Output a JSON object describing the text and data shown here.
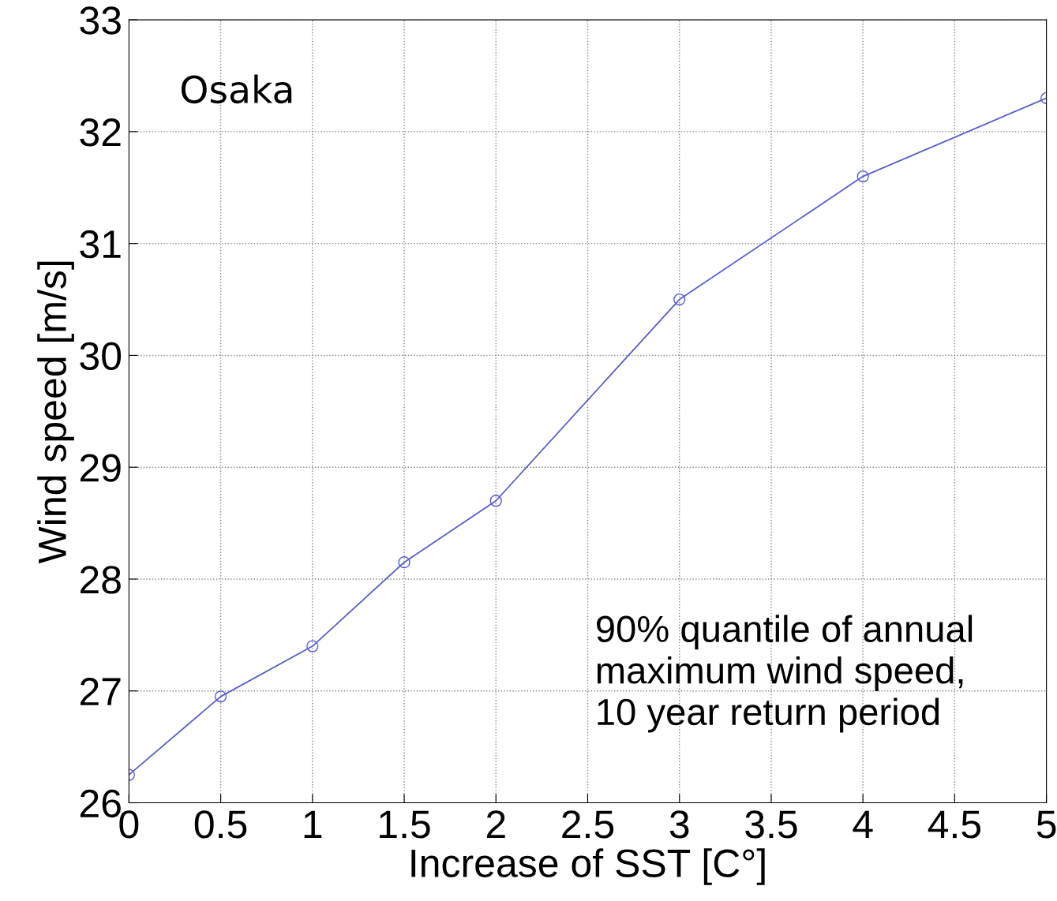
{
  "chart_data": {
    "type": "line",
    "xlabel": "Increase of SST [C°]",
    "ylabel": "Wind speed [m/s]",
    "x": [
      0,
      0.5,
      1,
      1.5,
      2,
      3,
      4,
      5
    ],
    "series": [
      {
        "color": "#5a5ec8",
        "values": [
          26.25,
          26.95,
          27.4,
          28.15,
          28.7,
          30.5,
          31.6,
          32.3
        ]
      }
    ],
    "xlim": [
      0,
      5
    ],
    "xticks": [
      0,
      0.5,
      1,
      1.5,
      2,
      2.5,
      3,
      3.5,
      4,
      4.5,
      5
    ],
    "ylim": [
      26,
      33
    ],
    "yticks": [
      26,
      27,
      28,
      29,
      30,
      31,
      32,
      33
    ],
    "grid": true,
    "marker": "circle",
    "line_style": "solid",
    "annotations": [
      "Osaka",
      "90% quantile of annual\nmaximum wind speed,\n10 year return period"
    ]
  }
}
